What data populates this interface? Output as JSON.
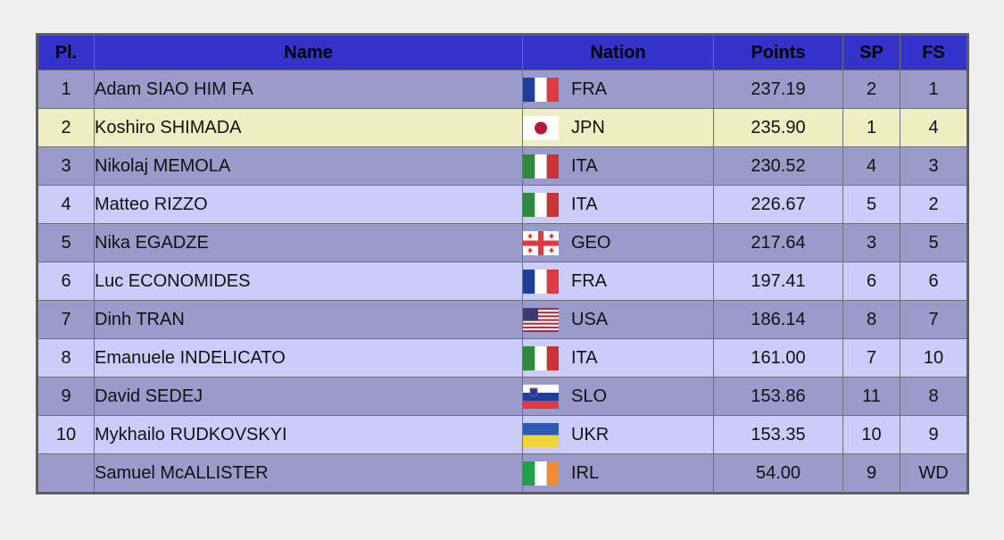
{
  "headers": {
    "place": "Pl.",
    "name": "Name",
    "nation": "Nation",
    "points": "Points",
    "sp": "SP",
    "fs": "FS"
  },
  "rows": [
    {
      "place": "1",
      "name": "Adam SIAO HIM FA",
      "nation": "FRA",
      "flag": "fra-flag-icon",
      "points": "237.19",
      "sp": "2",
      "fs": "1"
    },
    {
      "place": "2",
      "name": "Koshiro SHIMADA",
      "nation": "JPN",
      "flag": "jpn-flag-icon",
      "points": "235.90",
      "sp": "1",
      "fs": "4"
    },
    {
      "place": "3",
      "name": "Nikolaj MEMOLA",
      "nation": "ITA",
      "flag": "ita-flag-icon",
      "points": "230.52",
      "sp": "4",
      "fs": "3"
    },
    {
      "place": "4",
      "name": "Matteo RIZZO",
      "nation": "ITA",
      "flag": "ita-flag-icon",
      "points": "226.67",
      "sp": "5",
      "fs": "2"
    },
    {
      "place": "5",
      "name": "Nika EGADZE",
      "nation": "GEO",
      "flag": "geo-flag-icon",
      "points": "217.64",
      "sp": "3",
      "fs": "5"
    },
    {
      "place": "6",
      "name": "Luc ECONOMIDES",
      "nation": "FRA",
      "flag": "fra-flag-icon",
      "points": "197.41",
      "sp": "6",
      "fs": "6"
    },
    {
      "place": "7",
      "name": "Dinh TRAN",
      "nation": "USA",
      "flag": "usa-flag-icon",
      "points": "186.14",
      "sp": "8",
      "fs": "7"
    },
    {
      "place": "8",
      "name": "Emanuele INDELICATO",
      "nation": "ITA",
      "flag": "ita-flag-icon",
      "points": "161.00",
      "sp": "7",
      "fs": "10"
    },
    {
      "place": "9",
      "name": "David SEDEJ",
      "nation": "SLO",
      "flag": "slo-flag-icon",
      "points": "153.86",
      "sp": "11",
      "fs": "8"
    },
    {
      "place": "10",
      "name": "Mykhailo RUDKOVSKYI",
      "nation": "UKR",
      "flag": "ukr-flag-icon",
      "points": "153.35",
      "sp": "10",
      "fs": "9"
    },
    {
      "place": "",
      "name": "Samuel McALLISTER",
      "nation": "IRL",
      "flag": "irl-flag-icon",
      "points": "54.00",
      "sp": "9",
      "fs": "WD"
    }
  ],
  "colors": {
    "header": "#3333cc",
    "row_dark": "#9a9acb",
    "row_light": "#ccccfb",
    "row_highlight": "#eeeec2"
  }
}
